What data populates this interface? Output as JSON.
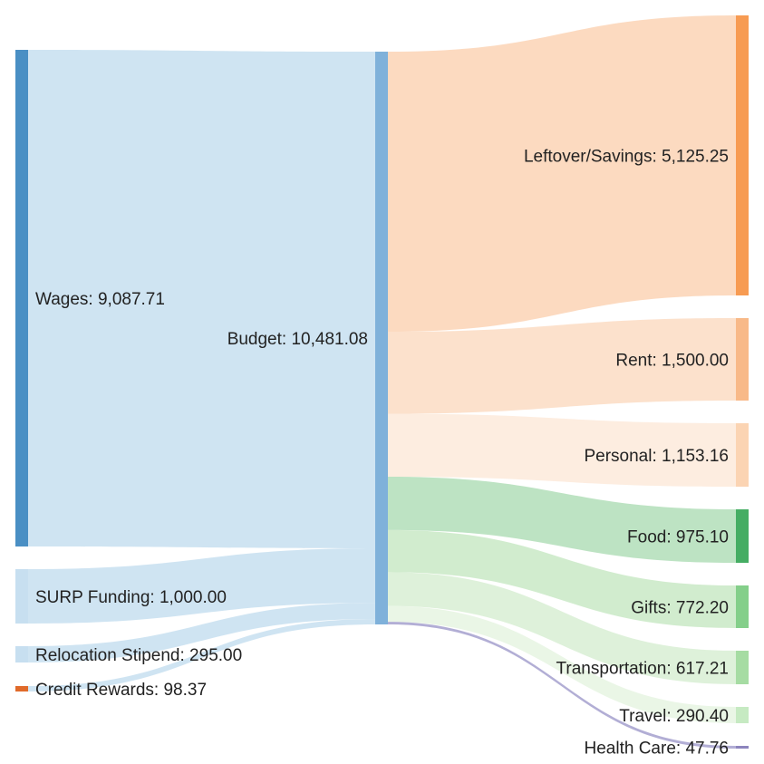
{
  "chart_data": {
    "type": "sankey",
    "nodes": [
      {
        "id": "wages",
        "name": "Wages",
        "value": 9087.71,
        "value_text": "9,087.71",
        "color": "#4a8fc4"
      },
      {
        "id": "surp",
        "name": "SURP Funding",
        "value": 1000.0,
        "value_text": "1,000.00",
        "color": "#c7dff0"
      },
      {
        "id": "relocation",
        "name": "Relocation Stipend",
        "value": 295.0,
        "value_text": "295.00",
        "color": "#c7dff0"
      },
      {
        "id": "credit",
        "name": "Credit Rewards",
        "value": 98.37,
        "value_text": "98.37",
        "color": "#e06a2a"
      },
      {
        "id": "budget",
        "name": "Budget",
        "value": 10481.08,
        "value_text": "10,481.08",
        "color": "#7fb1da"
      },
      {
        "id": "savings",
        "name": "Leftover/Savings",
        "value": 5125.25,
        "value_text": "5,125.25",
        "color": "#f79b52"
      },
      {
        "id": "rent",
        "name": "Rent",
        "value": 1500.0,
        "value_text": "1,500.00",
        "color": "#f8b988"
      },
      {
        "id": "personal",
        "name": "Personal",
        "value": 1153.16,
        "value_text": "1,153.16",
        "color": "#fbd4b3"
      },
      {
        "id": "food",
        "name": "Food",
        "value": 975.1,
        "value_text": "975.10",
        "color": "#45ad63"
      },
      {
        "id": "gifts",
        "name": "Gifts",
        "value": 772.2,
        "value_text": "772.20",
        "color": "#84cf8a"
      },
      {
        "id": "transportation",
        "name": "Transportation",
        "value": 617.21,
        "value_text": "617.21",
        "color": "#a6dca3"
      },
      {
        "id": "travel",
        "name": "Travel",
        "value": 290.4,
        "value_text": "290.40",
        "color": "#c6eac2"
      },
      {
        "id": "healthcare",
        "name": "Health Care",
        "value": 47.76,
        "value_text": "47.76",
        "color": "#8c85bd"
      }
    ],
    "links": [
      {
        "source": "wages",
        "target": "budget",
        "value": 9087.71
      },
      {
        "source": "surp",
        "target": "budget",
        "value": 1000.0
      },
      {
        "source": "relocation",
        "target": "budget",
        "value": 295.0
      },
      {
        "source": "credit",
        "target": "budget",
        "value": 98.37
      },
      {
        "source": "budget",
        "target": "savings",
        "value": 5125.25
      },
      {
        "source": "budget",
        "target": "rent",
        "value": 1500.0
      },
      {
        "source": "budget",
        "target": "personal",
        "value": 1153.16
      },
      {
        "source": "budget",
        "target": "food",
        "value": 975.1
      },
      {
        "source": "budget",
        "target": "gifts",
        "value": 772.2
      },
      {
        "source": "budget",
        "target": "transportation",
        "value": 617.21
      },
      {
        "source": "budget",
        "target": "travel",
        "value": 290.4
      },
      {
        "source": "budget",
        "target": "healthcare",
        "value": 47.76
      }
    ],
    "link_colors": {
      "wages": "#c7dff0",
      "surp": "#c7dff0",
      "relocation": "#c7dff0",
      "credit": "#c7dff0",
      "savings": "#fbd3b5",
      "rent": "#fcdcc3",
      "personal": "#fdeadb",
      "food": "#b2deb9",
      "gifts": "#c9e9c6",
      "transportation": "#d8efd4",
      "travel": "#e6f5e2",
      "healthcare": "#aaa5d0"
    }
  }
}
